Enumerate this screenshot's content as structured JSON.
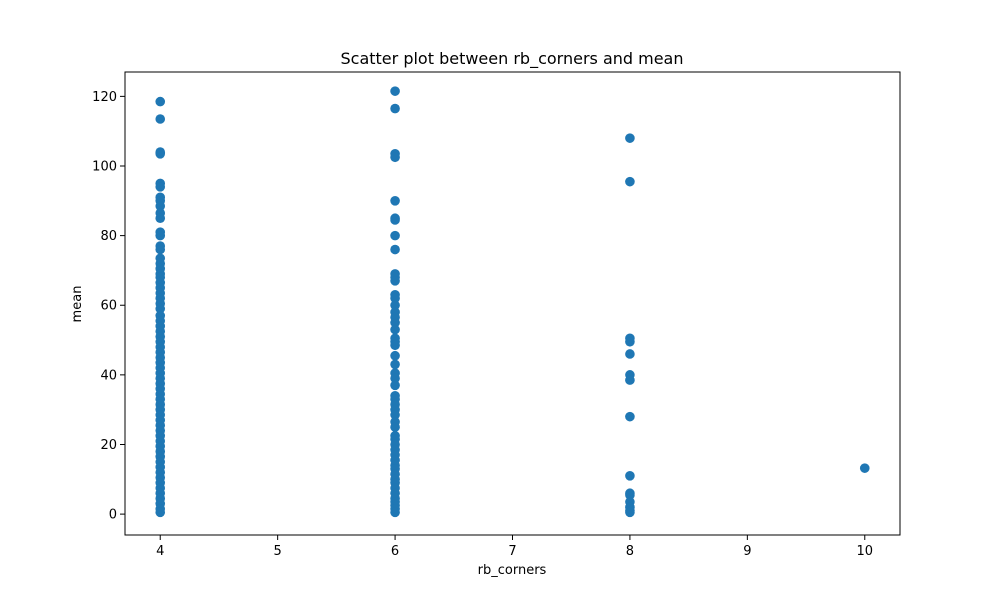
{
  "chart_data": {
    "type": "scatter",
    "title": "Scatter plot between rb_corners and mean",
    "xlabel": "rb_corners",
    "ylabel": "mean",
    "xlim": [
      3.7,
      10.3
    ],
    "ylim": [
      -6,
      127
    ],
    "xticks": [
      4,
      5,
      6,
      7,
      8,
      9,
      10
    ],
    "yticks": [
      0,
      20,
      40,
      60,
      80,
      100,
      120
    ],
    "grid": false,
    "marker_color": "#1f77b4",
    "series": [
      {
        "points": [
          [
            4,
            118.5
          ],
          [
            4,
            113.5
          ],
          [
            4,
            104
          ],
          [
            4,
            103.5
          ],
          [
            4,
            95
          ],
          [
            4,
            94
          ],
          [
            4,
            91
          ],
          [
            4,
            90
          ],
          [
            4,
            88.5
          ],
          [
            4,
            86.5
          ],
          [
            4,
            85
          ],
          [
            4,
            81
          ],
          [
            4,
            80
          ],
          [
            4,
            77
          ],
          [
            4,
            76
          ],
          [
            4,
            73.5
          ],
          [
            4,
            72
          ],
          [
            4,
            70.5
          ],
          [
            4,
            69
          ],
          [
            4,
            68
          ],
          [
            4,
            66.5
          ],
          [
            4,
            65
          ],
          [
            4,
            63.5
          ],
          [
            4,
            62
          ],
          [
            4,
            60.5
          ],
          [
            4,
            59
          ],
          [
            4,
            57
          ],
          [
            4,
            55.5
          ],
          [
            4,
            54
          ],
          [
            4,
            52.5
          ],
          [
            4,
            51
          ],
          [
            4,
            49.5
          ],
          [
            4,
            48
          ],
          [
            4,
            46.5
          ],
          [
            4,
            45
          ],
          [
            4,
            43.5
          ],
          [
            4,
            42
          ],
          [
            4,
            40.5
          ],
          [
            4,
            39
          ],
          [
            4,
            37.5
          ],
          [
            4,
            36
          ],
          [
            4,
            34.5
          ],
          [
            4,
            33
          ],
          [
            4,
            31.5
          ],
          [
            4,
            30
          ],
          [
            4,
            28.5
          ],
          [
            4,
            27
          ],
          [
            4,
            25.5
          ],
          [
            4,
            24
          ],
          [
            4,
            22.5
          ],
          [
            4,
            21
          ],
          [
            4,
            19.5
          ],
          [
            4,
            18
          ],
          [
            4,
            16.5
          ],
          [
            4,
            15
          ],
          [
            4,
            13.5
          ],
          [
            4,
            12
          ],
          [
            4,
            10.5
          ],
          [
            4,
            9
          ],
          [
            4,
            7.5
          ],
          [
            4,
            6
          ],
          [
            4,
            4.5
          ],
          [
            4,
            3
          ],
          [
            4,
            1.5
          ],
          [
            4,
            0.5
          ],
          [
            6,
            121.5
          ],
          [
            6,
            116.5
          ],
          [
            6,
            103.5
          ],
          [
            6,
            102.5
          ],
          [
            6,
            90
          ],
          [
            6,
            85
          ],
          [
            6,
            84.5
          ],
          [
            6,
            80
          ],
          [
            6,
            76
          ],
          [
            6,
            69
          ],
          [
            6,
            68
          ],
          [
            6,
            67
          ],
          [
            6,
            63
          ],
          [
            6,
            62
          ],
          [
            6,
            60
          ],
          [
            6,
            58
          ],
          [
            6,
            56.5
          ],
          [
            6,
            55
          ],
          [
            6,
            53
          ],
          [
            6,
            50.5
          ],
          [
            6,
            49.5
          ],
          [
            6,
            48.5
          ],
          [
            6,
            45.5
          ],
          [
            6,
            43
          ],
          [
            6,
            40.5
          ],
          [
            6,
            39
          ],
          [
            6,
            37
          ],
          [
            6,
            34
          ],
          [
            6,
            33
          ],
          [
            6,
            31.5
          ],
          [
            6,
            30
          ],
          [
            6,
            28.5
          ],
          [
            6,
            26.5
          ],
          [
            6,
            25
          ],
          [
            6,
            22.5
          ],
          [
            6,
            21.5
          ],
          [
            6,
            20
          ],
          [
            6,
            18.5
          ],
          [
            6,
            17
          ],
          [
            6,
            15.5
          ],
          [
            6,
            14
          ],
          [
            6,
            13
          ],
          [
            6,
            11.5
          ],
          [
            6,
            10
          ],
          [
            6,
            9
          ],
          [
            6,
            7.5
          ],
          [
            6,
            6
          ],
          [
            6,
            4.5
          ],
          [
            6,
            3.5
          ],
          [
            6,
            2.5
          ],
          [
            6,
            1.5
          ],
          [
            6,
            0.5
          ],
          [
            8,
            108
          ],
          [
            8,
            95.5
          ],
          [
            8,
            50.5
          ],
          [
            8,
            49.5
          ],
          [
            8,
            46
          ],
          [
            8,
            40
          ],
          [
            8,
            38.5
          ],
          [
            8,
            28
          ],
          [
            8,
            11
          ],
          [
            8,
            6
          ],
          [
            8,
            5.5
          ],
          [
            8,
            3.5
          ],
          [
            8,
            2
          ],
          [
            8,
            1
          ],
          [
            8,
            0.5
          ],
          [
            10,
            13.2
          ]
        ]
      }
    ]
  }
}
